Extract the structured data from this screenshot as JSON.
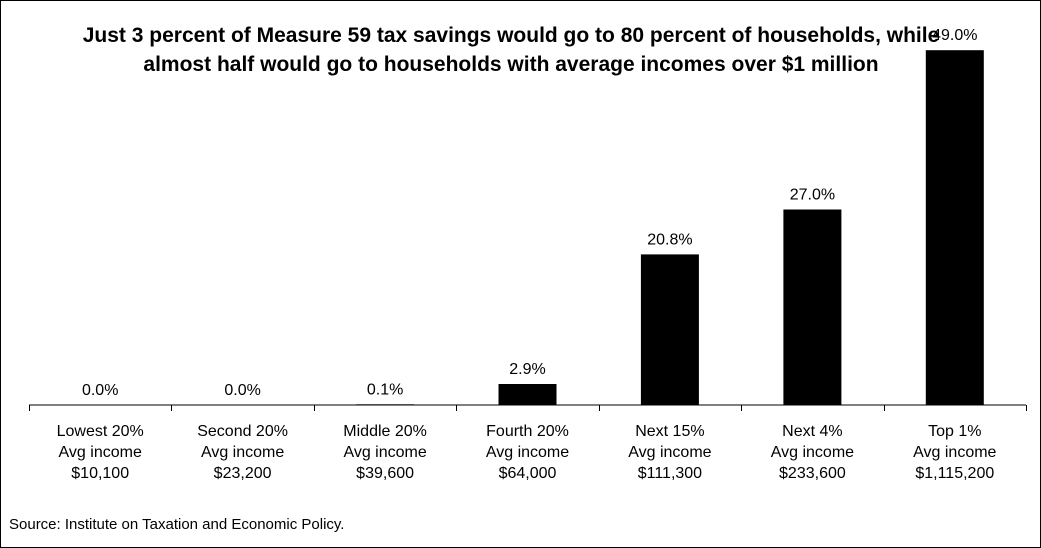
{
  "chart_data": {
    "type": "bar",
    "title": "Just 3 percent of Measure 59 tax savings would go to 80 percent of households, while almost half would go to households with average incomes over $1 million",
    "categories": [
      [
        "Lowest 20%",
        "Avg income",
        "$10,100"
      ],
      [
        "Second 20%",
        "Avg income",
        "$23,200"
      ],
      [
        "Middle 20%",
        "Avg income",
        "$39,600"
      ],
      [
        "Fourth 20%",
        "Avg income",
        "$64,000"
      ],
      [
        "Next 15%",
        "Avg income",
        "$111,300"
      ],
      [
        "Next 4%",
        "Avg income",
        "$233,600"
      ],
      [
        "Top 1%",
        "Avg income",
        "$1,115,200"
      ]
    ],
    "values": [
      0.0,
      0.0,
      0.1,
      2.9,
      20.8,
      27.0,
      49.0
    ],
    "data_labels": [
      "0.0%",
      "0.0%",
      "0.1%",
      "2.9%",
      "20.8%",
      "27.0%",
      "49.0%"
    ],
    "xlabel": "",
    "ylabel": "",
    "ylim": [
      0,
      50
    ],
    "grid": false,
    "bar_color": "#000000"
  },
  "source": "Source: Institute on Taxation and Economic Policy."
}
